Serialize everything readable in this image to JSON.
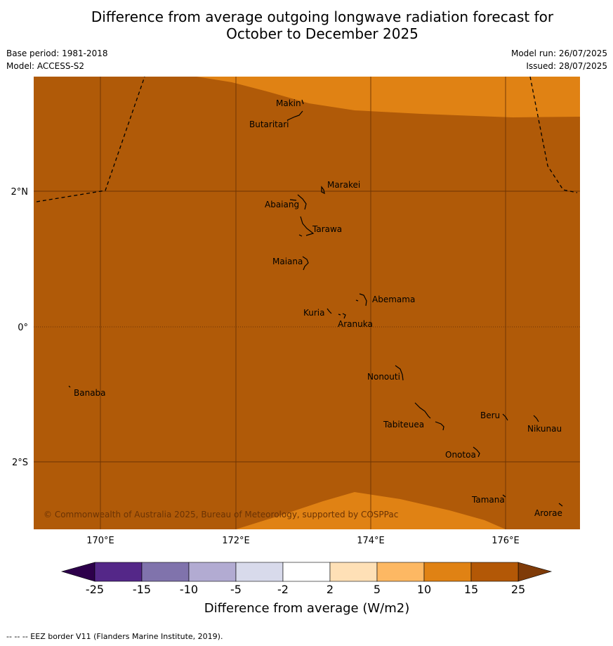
{
  "title": {
    "line1": "Difference from average outgoing longwave radiation forecast for",
    "line2": "October to December 2025"
  },
  "meta": {
    "base_period": "Base period: 1981-2018",
    "model": "Model: ACCESS-S2",
    "model_run": "Model run: 26/07/2025",
    "issued": "Issued: 28/07/2025"
  },
  "map": {
    "lat_labels": [
      "2°N",
      "0°",
      "2°S"
    ],
    "lon_labels": [
      "170°E",
      "172°E",
      "174°E",
      "176°E"
    ],
    "places": [
      {
        "name": "Makin",
        "lat": 3.4,
        "lon": 172.9
      },
      {
        "name": "Butaritari",
        "lat": 3.05,
        "lon": 172.85
      },
      {
        "name": "Marakei",
        "lat": 2.0,
        "lon": 173.3
      },
      {
        "name": "Abaiang",
        "lat": 1.8,
        "lon": 172.95
      },
      {
        "name": "Tarawa",
        "lat": 1.4,
        "lon": 173.0
      },
      {
        "name": "Maiana",
        "lat": 0.95,
        "lon": 173.0
      },
      {
        "name": "Abemama",
        "lat": 0.4,
        "lon": 173.9
      },
      {
        "name": "Kuria",
        "lat": 0.23,
        "lon": 173.4
      },
      {
        "name": "Aranuka",
        "lat": 0.17,
        "lon": 173.6
      },
      {
        "name": "Nonouti",
        "lat": -0.65,
        "lon": 174.4
      },
      {
        "name": "Banaba",
        "lat": -0.87,
        "lon": 169.55
      },
      {
        "name": "Beru",
        "lat": -1.33,
        "lon": 176.0
      },
      {
        "name": "Tabiteuea",
        "lat": -1.3,
        "lon": 174.8
      },
      {
        "name": "Nikunau",
        "lat": -1.35,
        "lon": 176.45
      },
      {
        "name": "Onotoa",
        "lat": -1.8,
        "lon": 175.55
      },
      {
        "name": "Tamana",
        "lat": -2.5,
        "lon": 175.98
      },
      {
        "name": "Arorae",
        "lat": -2.64,
        "lon": 176.83
      }
    ],
    "copyright": "© Commonwealth of Australia 2025, Bureau of Meteorology, supported by COSPPac",
    "colors": {
      "anomaly_15_25": "#b05a08",
      "anomaly_10_15": "#e08214",
      "grid": "#6b3304"
    }
  },
  "colorbar": {
    "ticks": [
      "-25",
      "-15",
      "-10",
      "-5",
      "-2",
      "2",
      "5",
      "10",
      "15",
      "25"
    ],
    "colors": [
      "#542788",
      "#8073ac",
      "#b2abd2",
      "#d8daeb",
      "#ffffff",
      "#fee0b6",
      "#fdb863",
      "#e08214",
      "#b35806"
    ],
    "under_color": "#2d004b",
    "over_color": "#7f3b08",
    "label": "Difference from average (W/m2)"
  },
  "footer": "--  --  -- EEZ border V11 (Flanders Marine Institute, 2019)."
}
